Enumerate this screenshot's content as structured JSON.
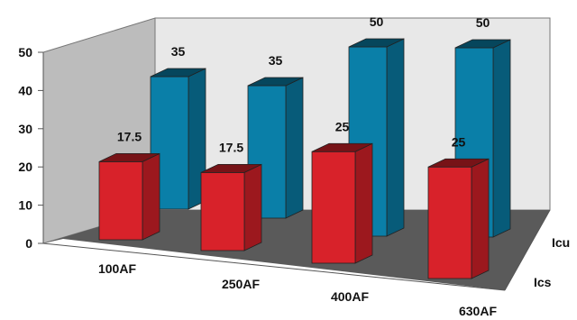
{
  "chart_data": {
    "type": "bar",
    "style": "3d-grouped",
    "categories": [
      "100AF",
      "250AF",
      "400AF",
      "630AF"
    ],
    "series": [
      {
        "name": "Ics",
        "values": [
          17.5,
          17.5,
          25,
          25
        ],
        "labels": [
          "17.5",
          "17.5",
          "25",
          "25"
        ],
        "color": "#d8222a"
      },
      {
        "name": "Icu",
        "values": [
          35,
          35,
          50,
          50
        ],
        "labels": [
          "35",
          "35",
          "50",
          "50"
        ],
        "color": "#0a7fa8"
      }
    ],
    "y_ticks": [
      "0",
      "10",
      "20",
      "30",
      "40",
      "50"
    ],
    "ylim": [
      0,
      50
    ],
    "grid": false,
    "colors": {
      "back_wall": "#e8e8e8",
      "side_wall": "#bcbcbc",
      "floor": "#5a5a5a"
    }
  }
}
